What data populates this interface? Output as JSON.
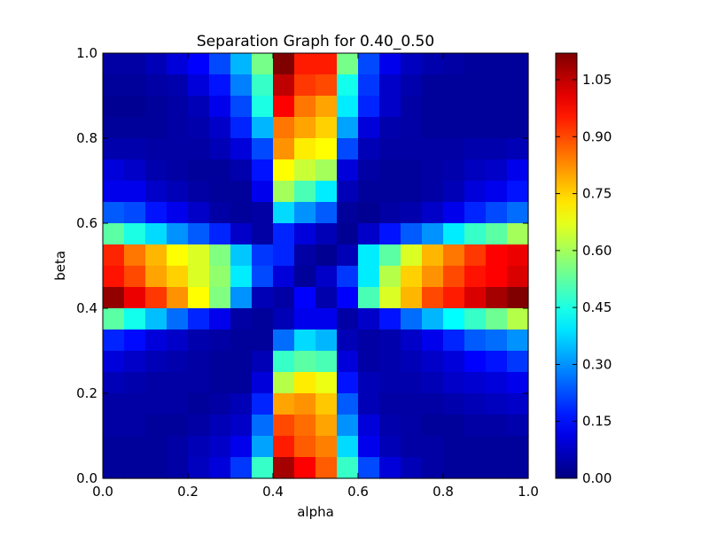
{
  "chart_data": {
    "type": "heatmap",
    "title": "Separation Graph for 0.40_0.50",
    "xlabel": "alpha",
    "ylabel": "beta",
    "xlim": [
      0,
      1
    ],
    "ylim": [
      0,
      1
    ],
    "x_ticks": [
      "0.0",
      "0.2",
      "0.4",
      "0.6",
      "0.8",
      "1.0"
    ],
    "y_ticks": [
      "0.0",
      "0.2",
      "0.4",
      "0.6",
      "0.8",
      "1.0"
    ],
    "colorbar": {
      "range": [
        0,
        1.12
      ],
      "ticks": [
        "0.00",
        "0.15",
        "0.30",
        "0.45",
        "0.60",
        "0.75",
        "0.90",
        "1.05"
      ],
      "colormap": "jet"
    },
    "grid": false,
    "resolution": [
      20,
      20
    ],
    "rows_top_to_bottom": [
      [
        0.04,
        0.04,
        0.06,
        0.1,
        0.14,
        0.22,
        0.34,
        0.55,
        1.12,
        0.95,
        0.95,
        0.55,
        0.22,
        0.12,
        0.07,
        0.05,
        0.04,
        0.03,
        0.03,
        0.03
      ],
      [
        0.03,
        0.03,
        0.04,
        0.05,
        0.1,
        0.16,
        0.28,
        0.48,
        1.05,
        0.92,
        0.9,
        0.44,
        0.2,
        0.08,
        0.05,
        0.03,
        0.03,
        0.03,
        0.03,
        0.03
      ],
      [
        0.02,
        0.02,
        0.03,
        0.04,
        0.06,
        0.12,
        0.22,
        0.45,
        0.98,
        0.85,
        0.8,
        0.4,
        0.18,
        0.08,
        0.04,
        0.03,
        0.03,
        0.03,
        0.03,
        0.03
      ],
      [
        0.03,
        0.03,
        0.03,
        0.04,
        0.05,
        0.08,
        0.18,
        0.34,
        0.85,
        0.8,
        0.75,
        0.32,
        0.1,
        0.05,
        0.04,
        0.03,
        0.03,
        0.03,
        0.03,
        0.03
      ],
      [
        0.05,
        0.05,
        0.04,
        0.04,
        0.04,
        0.06,
        0.1,
        0.22,
        0.82,
        0.72,
        0.7,
        0.22,
        0.06,
        0.04,
        0.04,
        0.04,
        0.04,
        0.05,
        0.05,
        0.06
      ],
      [
        0.1,
        0.08,
        0.05,
        0.04,
        0.03,
        0.03,
        0.05,
        0.16,
        0.7,
        0.64,
        0.6,
        0.1,
        0.04,
        0.03,
        0.03,
        0.04,
        0.05,
        0.07,
        0.08,
        0.12
      ],
      [
        0.12,
        0.12,
        0.08,
        0.06,
        0.04,
        0.03,
        0.03,
        0.12,
        0.6,
        0.5,
        0.4,
        0.06,
        0.03,
        0.03,
        0.03,
        0.04,
        0.06,
        0.1,
        0.12,
        0.16
      ],
      [
        0.24,
        0.22,
        0.16,
        0.12,
        0.08,
        0.04,
        0.03,
        0.04,
        0.38,
        0.3,
        0.24,
        0.03,
        0.02,
        0.04,
        0.05,
        0.08,
        0.12,
        0.18,
        0.22,
        0.26
      ],
      [
        0.52,
        0.45,
        0.38,
        0.3,
        0.24,
        0.18,
        0.08,
        0.04,
        0.18,
        0.1,
        0.06,
        0.02,
        0.08,
        0.16,
        0.24,
        0.3,
        0.4,
        0.48,
        0.52,
        0.6
      ],
      [
        0.94,
        0.85,
        0.78,
        0.7,
        0.66,
        0.56,
        0.36,
        0.2,
        0.18,
        0.04,
        0.02,
        0.06,
        0.4,
        0.52,
        0.66,
        0.78,
        0.85,
        0.92,
        0.98,
        1.0
      ],
      [
        0.96,
        0.9,
        0.8,
        0.75,
        0.66,
        0.58,
        0.4,
        0.22,
        0.1,
        0.03,
        0.08,
        0.2,
        0.4,
        0.62,
        0.75,
        0.82,
        0.9,
        0.96,
        0.98,
        1.02
      ],
      [
        1.1,
        1.0,
        0.92,
        0.82,
        0.7,
        0.56,
        0.3,
        0.06,
        0.04,
        0.14,
        0.05,
        0.14,
        0.5,
        0.66,
        0.78,
        0.9,
        0.95,
        1.02,
        1.08,
        1.12
      ],
      [
        0.52,
        0.44,
        0.35,
        0.26,
        0.18,
        0.12,
        0.04,
        0.03,
        0.06,
        0.12,
        0.12,
        0.04,
        0.08,
        0.16,
        0.26,
        0.34,
        0.42,
        0.48,
        0.54,
        0.62
      ],
      [
        0.18,
        0.15,
        0.1,
        0.08,
        0.05,
        0.04,
        0.03,
        0.03,
        0.26,
        0.38,
        0.34,
        0.06,
        0.04,
        0.05,
        0.08,
        0.12,
        0.18,
        0.24,
        0.26,
        0.3
      ],
      [
        0.1,
        0.08,
        0.06,
        0.05,
        0.04,
        0.03,
        0.03,
        0.06,
        0.48,
        0.52,
        0.5,
        0.1,
        0.04,
        0.05,
        0.06,
        0.08,
        0.1,
        0.14,
        0.16,
        0.2
      ],
      [
        0.06,
        0.05,
        0.04,
        0.04,
        0.04,
        0.03,
        0.03,
        0.1,
        0.62,
        0.72,
        0.68,
        0.16,
        0.06,
        0.05,
        0.05,
        0.06,
        0.08,
        0.09,
        0.1,
        0.12
      ],
      [
        0.04,
        0.04,
        0.04,
        0.04,
        0.03,
        0.04,
        0.06,
        0.18,
        0.8,
        0.82,
        0.76,
        0.24,
        0.06,
        0.04,
        0.04,
        0.04,
        0.05,
        0.06,
        0.07,
        0.08
      ],
      [
        0.04,
        0.04,
        0.03,
        0.03,
        0.04,
        0.06,
        0.08,
        0.26,
        0.9,
        0.86,
        0.8,
        0.3,
        0.1,
        0.05,
        0.04,
        0.03,
        0.03,
        0.04,
        0.04,
        0.05
      ],
      [
        0.03,
        0.03,
        0.03,
        0.04,
        0.06,
        0.08,
        0.12,
        0.32,
        0.95,
        0.88,
        0.84,
        0.38,
        0.12,
        0.06,
        0.04,
        0.04,
        0.03,
        0.03,
        0.03,
        0.03
      ],
      [
        0.03,
        0.03,
        0.03,
        0.04,
        0.07,
        0.1,
        0.2,
        0.48,
        1.08,
        0.98,
        0.88,
        0.48,
        0.22,
        0.1,
        0.06,
        0.04,
        0.03,
        0.03,
        0.03,
        0.03
      ]
    ]
  }
}
